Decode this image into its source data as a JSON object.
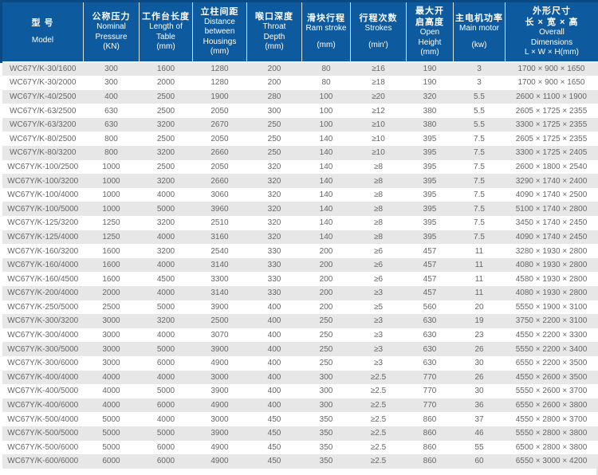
{
  "colors": {
    "header_bg": "#0e5a9e",
    "header_border": "#0a4a84",
    "header_text": "#ffffff",
    "row_stripe": "#e7e7e7",
    "body_text": "#666666"
  },
  "table": {
    "columns": [
      {
        "zh_lines": [
          "型 号"
        ],
        "en_lines": [
          "",
          "Model"
        ]
      },
      {
        "zh_lines": [
          "公称压力"
        ],
        "en_lines": [
          "Nominal",
          "Pressure",
          "(KN)"
        ]
      },
      {
        "zh_lines": [
          "工作台长度"
        ],
        "en_lines": [
          "Length of",
          "Table",
          "(mm)"
        ]
      },
      {
        "zh_lines": [
          "立柱间距"
        ],
        "en_lines": [
          "Distance",
          "between",
          "Housings",
          "(mm)"
        ]
      },
      {
        "zh_lines": [
          "喉口深度"
        ],
        "en_lines": [
          "Throat",
          "Depth",
          "(mm)"
        ]
      },
      {
        "zh_lines": [
          "滑块行程"
        ],
        "en_lines": [
          "Ram stroke",
          "",
          "(mm)"
        ]
      },
      {
        "zh_lines": [
          "行程次数"
        ],
        "en_lines": [
          "Strokes",
          "",
          "(min')"
        ]
      },
      {
        "zh_lines": [
          "最大开",
          "启高度"
        ],
        "en_lines": [
          "Open",
          "Height",
          "(mm)"
        ]
      },
      {
        "zh_lines": [
          "主电机功率"
        ],
        "en_lines": [
          "Main motor",
          "",
          "(kw)"
        ]
      },
      {
        "zh_lines": [
          "外形尺寸",
          "长 × 宽 × 高"
        ],
        "en_lines": [
          "Overall",
          "Dimensions",
          "L × W × H(mm)"
        ]
      }
    ],
    "rows": [
      [
        "WC67Y/K-30/1600",
        "300",
        "1600",
        "1280",
        "200",
        "80",
        "≥16",
        "190",
        "3",
        "1700 × 900 × 1650"
      ],
      [
        "WC67Y/K-30/2000",
        "300",
        "2000",
        "1280",
        "200",
        "80",
        "≥18",
        "190",
        "3",
        "1700 × 900 × 1650"
      ],
      [
        "WC67Y/K-40/2500",
        "400",
        "2500",
        "1900",
        "280",
        "100",
        "≥20",
        "320",
        "5.5",
        "2600 × 1100 × 1900"
      ],
      [
        "WC67Y/K-63/2500",
        "630",
        "2500",
        "2050",
        "300",
        "100",
        "≥12",
        "380",
        "5.5",
        "2605 × 1725 × 2355"
      ],
      [
        "WC67Y/K-63/3200",
        "630",
        "3200",
        "2670",
        "250",
        "100",
        "≥10",
        "380",
        "5.5",
        "3300 × 1725 × 2355"
      ],
      [
        "WC67Y/K-80/2500",
        "800",
        "2500",
        "2050",
        "250",
        "140",
        "≥10",
        "395",
        "7.5",
        "2605 × 1725 × 2355"
      ],
      [
        "WC67Y/K-80/3200",
        "800",
        "3200",
        "2660",
        "250",
        "140",
        "≥10",
        "395",
        "7.5",
        "3300 × 1725 × 2405"
      ],
      [
        "WC67Y/K-100/2500",
        "1000",
        "2500",
        "2050",
        "320",
        "140",
        "≥8",
        "395",
        "7.5",
        "2600 × 1800 × 2540"
      ],
      [
        "WC67Y/K-100/3200",
        "1000",
        "3200",
        "2660",
        "320",
        "140",
        "≥8",
        "395",
        "7.5",
        "3290 × 1740 × 2400"
      ],
      [
        "WC67Y/K-100/4000",
        "1000",
        "4000",
        "3060",
        "320",
        "140",
        "≥8",
        "395",
        "7.5",
        "4090 × 1740 × 2500"
      ],
      [
        "WC67Y/K-100/5000",
        "1000",
        "5000",
        "3960",
        "320",
        "140",
        "≥8",
        "395",
        "7.5",
        "5100 × 1740 × 2800"
      ],
      [
        "WC67Y/K-125/3200",
        "1250",
        "3200",
        "2510",
        "320",
        "140",
        "≥8",
        "395",
        "7.5",
        "3450 × 1740 × 2450"
      ],
      [
        "WC67Y/K-125/4000",
        "1250",
        "4000",
        "3160",
        "320",
        "140",
        "≥8",
        "395",
        "7.5",
        "4090 × 1740 × 2450"
      ],
      [
        "WC67Y/K-160/3200",
        "1600",
        "3200",
        "2540",
        "330",
        "200",
        "≥6",
        "457",
        "11",
        "3280 × 1930 × 2800"
      ],
      [
        "WC67Y/K-160/4000",
        "1600",
        "4000",
        "3140",
        "330",
        "200",
        "≥6",
        "457",
        "11",
        "4080 × 1930 × 2800"
      ],
      [
        "WC67Y/K-160/4500",
        "1600",
        "4500",
        "3300",
        "330",
        "200",
        "≥6",
        "457",
        "11",
        "4580 × 1930 × 2800"
      ],
      [
        "WC67Y/K-200/4000",
        "2000",
        "4000",
        "3140",
        "330",
        "200",
        "≥3",
        "457",
        "11",
        "4080 × 1930 × 2800"
      ],
      [
        "WC67Y/K-250/5000",
        "2500",
        "5000",
        "3900",
        "400",
        "200",
        "≥5",
        "560",
        "20",
        "5550 × 1900 × 3100"
      ],
      [
        "WC67Y/K-300/3200",
        "3000",
        "3200",
        "2500",
        "400",
        "250",
        "≥3",
        "630",
        "19",
        "3750 × 2200 × 3100"
      ],
      [
        "WC67Y/K-300/4000",
        "3000",
        "4000",
        "3070",
        "400",
        "250",
        "≥3",
        "630",
        "23",
        "4550 × 2200 × 3300"
      ],
      [
        "WC67Y/K-300/5000",
        "3000",
        "5000",
        "3900",
        "400",
        "250",
        "≥3",
        "630",
        "26",
        "5550 × 2200 × 3400"
      ],
      [
        "WC67Y/K-300/6000",
        "3000",
        "6000",
        "4900",
        "400",
        "250",
        "≥3",
        "630",
        "30",
        "6550 × 2200 × 3500"
      ],
      [
        "WC67Y/K-400/4000",
        "4000",
        "4000",
        "3000",
        "400",
        "300",
        "≥2.5",
        "770",
        "26",
        "4550 × 2600 × 3500"
      ],
      [
        "WC67Y/K-400/5000",
        "4000",
        "5000",
        "3900",
        "400",
        "300",
        "≥2.5",
        "770",
        "30",
        "5550 × 2600 × 3700"
      ],
      [
        "WC67Y/K-400/6000",
        "4000",
        "6000",
        "4900",
        "400",
        "300",
        "≥2.5",
        "770",
        "36",
        "6550 × 2600 × 3800"
      ],
      [
        "WC67Y/K-500/4000",
        "5000",
        "4000",
        "3000",
        "450",
        "350",
        "≥2.5",
        "860",
        "37",
        "4550 × 2800 × 3700"
      ],
      [
        "WC67Y/K-500/5000",
        "5000",
        "5000",
        "3900",
        "450",
        "350",
        "≥2.5",
        "860",
        "46",
        "5550 × 2800 × 3800"
      ],
      [
        "WC67Y/K-500/6000",
        "5000",
        "6000",
        "4900",
        "450",
        "350",
        "≥2.5",
        "860",
        "55",
        "6500 × 2800 × 3800"
      ],
      [
        "WC67Y/K-600/6000",
        "6000",
        "6000",
        "4900",
        "450",
        "350",
        "≥2.5",
        "860",
        "60",
        "6550 × 3000 × 4200"
      ]
    ]
  }
}
